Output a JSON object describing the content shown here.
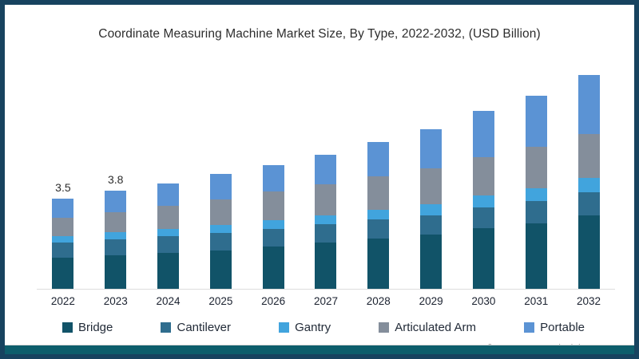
{
  "title": "Coordinate Measuring Machine Market Size, By Type, 2022-2032, (USD Billion)",
  "source": "Source: www.gminsights.com",
  "colors": {
    "frame_border": "#17435f",
    "bottom_bar": "#0d5e6c",
    "axis_line": "#dcdcdc"
  },
  "chart_data": {
    "type": "bar",
    "stacked": true,
    "title": "Coordinate Measuring Machine Market Size, By Type, 2022-2032, (USD Billion)",
    "xlabel": "",
    "ylabel": "",
    "unit": "USD Billion",
    "categories": [
      "2022",
      "2023",
      "2024",
      "2025",
      "2026",
      "2027",
      "2028",
      "2029",
      "2030",
      "2031",
      "2032"
    ],
    "series": [
      {
        "name": "Bridge",
        "color": "#115368",
        "values": [
          1.2,
          1.3,
          1.4,
          1.5,
          1.65,
          1.8,
          1.95,
          2.1,
          2.35,
          2.55,
          2.85
        ]
      },
      {
        "name": "Cantilever",
        "color": "#2f6d8e",
        "values": [
          0.6,
          0.62,
          0.64,
          0.66,
          0.68,
          0.7,
          0.73,
          0.76,
          0.8,
          0.85,
          0.9
        ]
      },
      {
        "name": "Gantry",
        "color": "#41a4dd",
        "values": [
          0.25,
          0.27,
          0.29,
          0.31,
          0.34,
          0.36,
          0.4,
          0.43,
          0.47,
          0.51,
          0.55
        ]
      },
      {
        "name": "Articulated Arm",
        "color": "#848e9b",
        "values": [
          0.7,
          0.8,
          0.9,
          1.0,
          1.1,
          1.2,
          1.3,
          1.4,
          1.5,
          1.6,
          1.7
        ]
      },
      {
        "name": "Portable",
        "color": "#5b93d4",
        "values": [
          0.75,
          0.81,
          0.87,
          0.98,
          1.03,
          1.14,
          1.32,
          1.51,
          1.78,
          1.99,
          2.3
        ]
      }
    ],
    "totals": [
      3.5,
      3.8,
      4.1,
      4.45,
      4.8,
      5.2,
      5.7,
      6.2,
      6.9,
      7.5,
      8.3
    ],
    "bar_total_labels": [
      "3.5",
      "3.8",
      "",
      "",
      "",
      "",
      "",
      "",
      "",
      "",
      ""
    ],
    "ylim": [
      0,
      8.6
    ],
    "y_axis_visible": false,
    "grid": false,
    "legend_position": "bottom"
  }
}
